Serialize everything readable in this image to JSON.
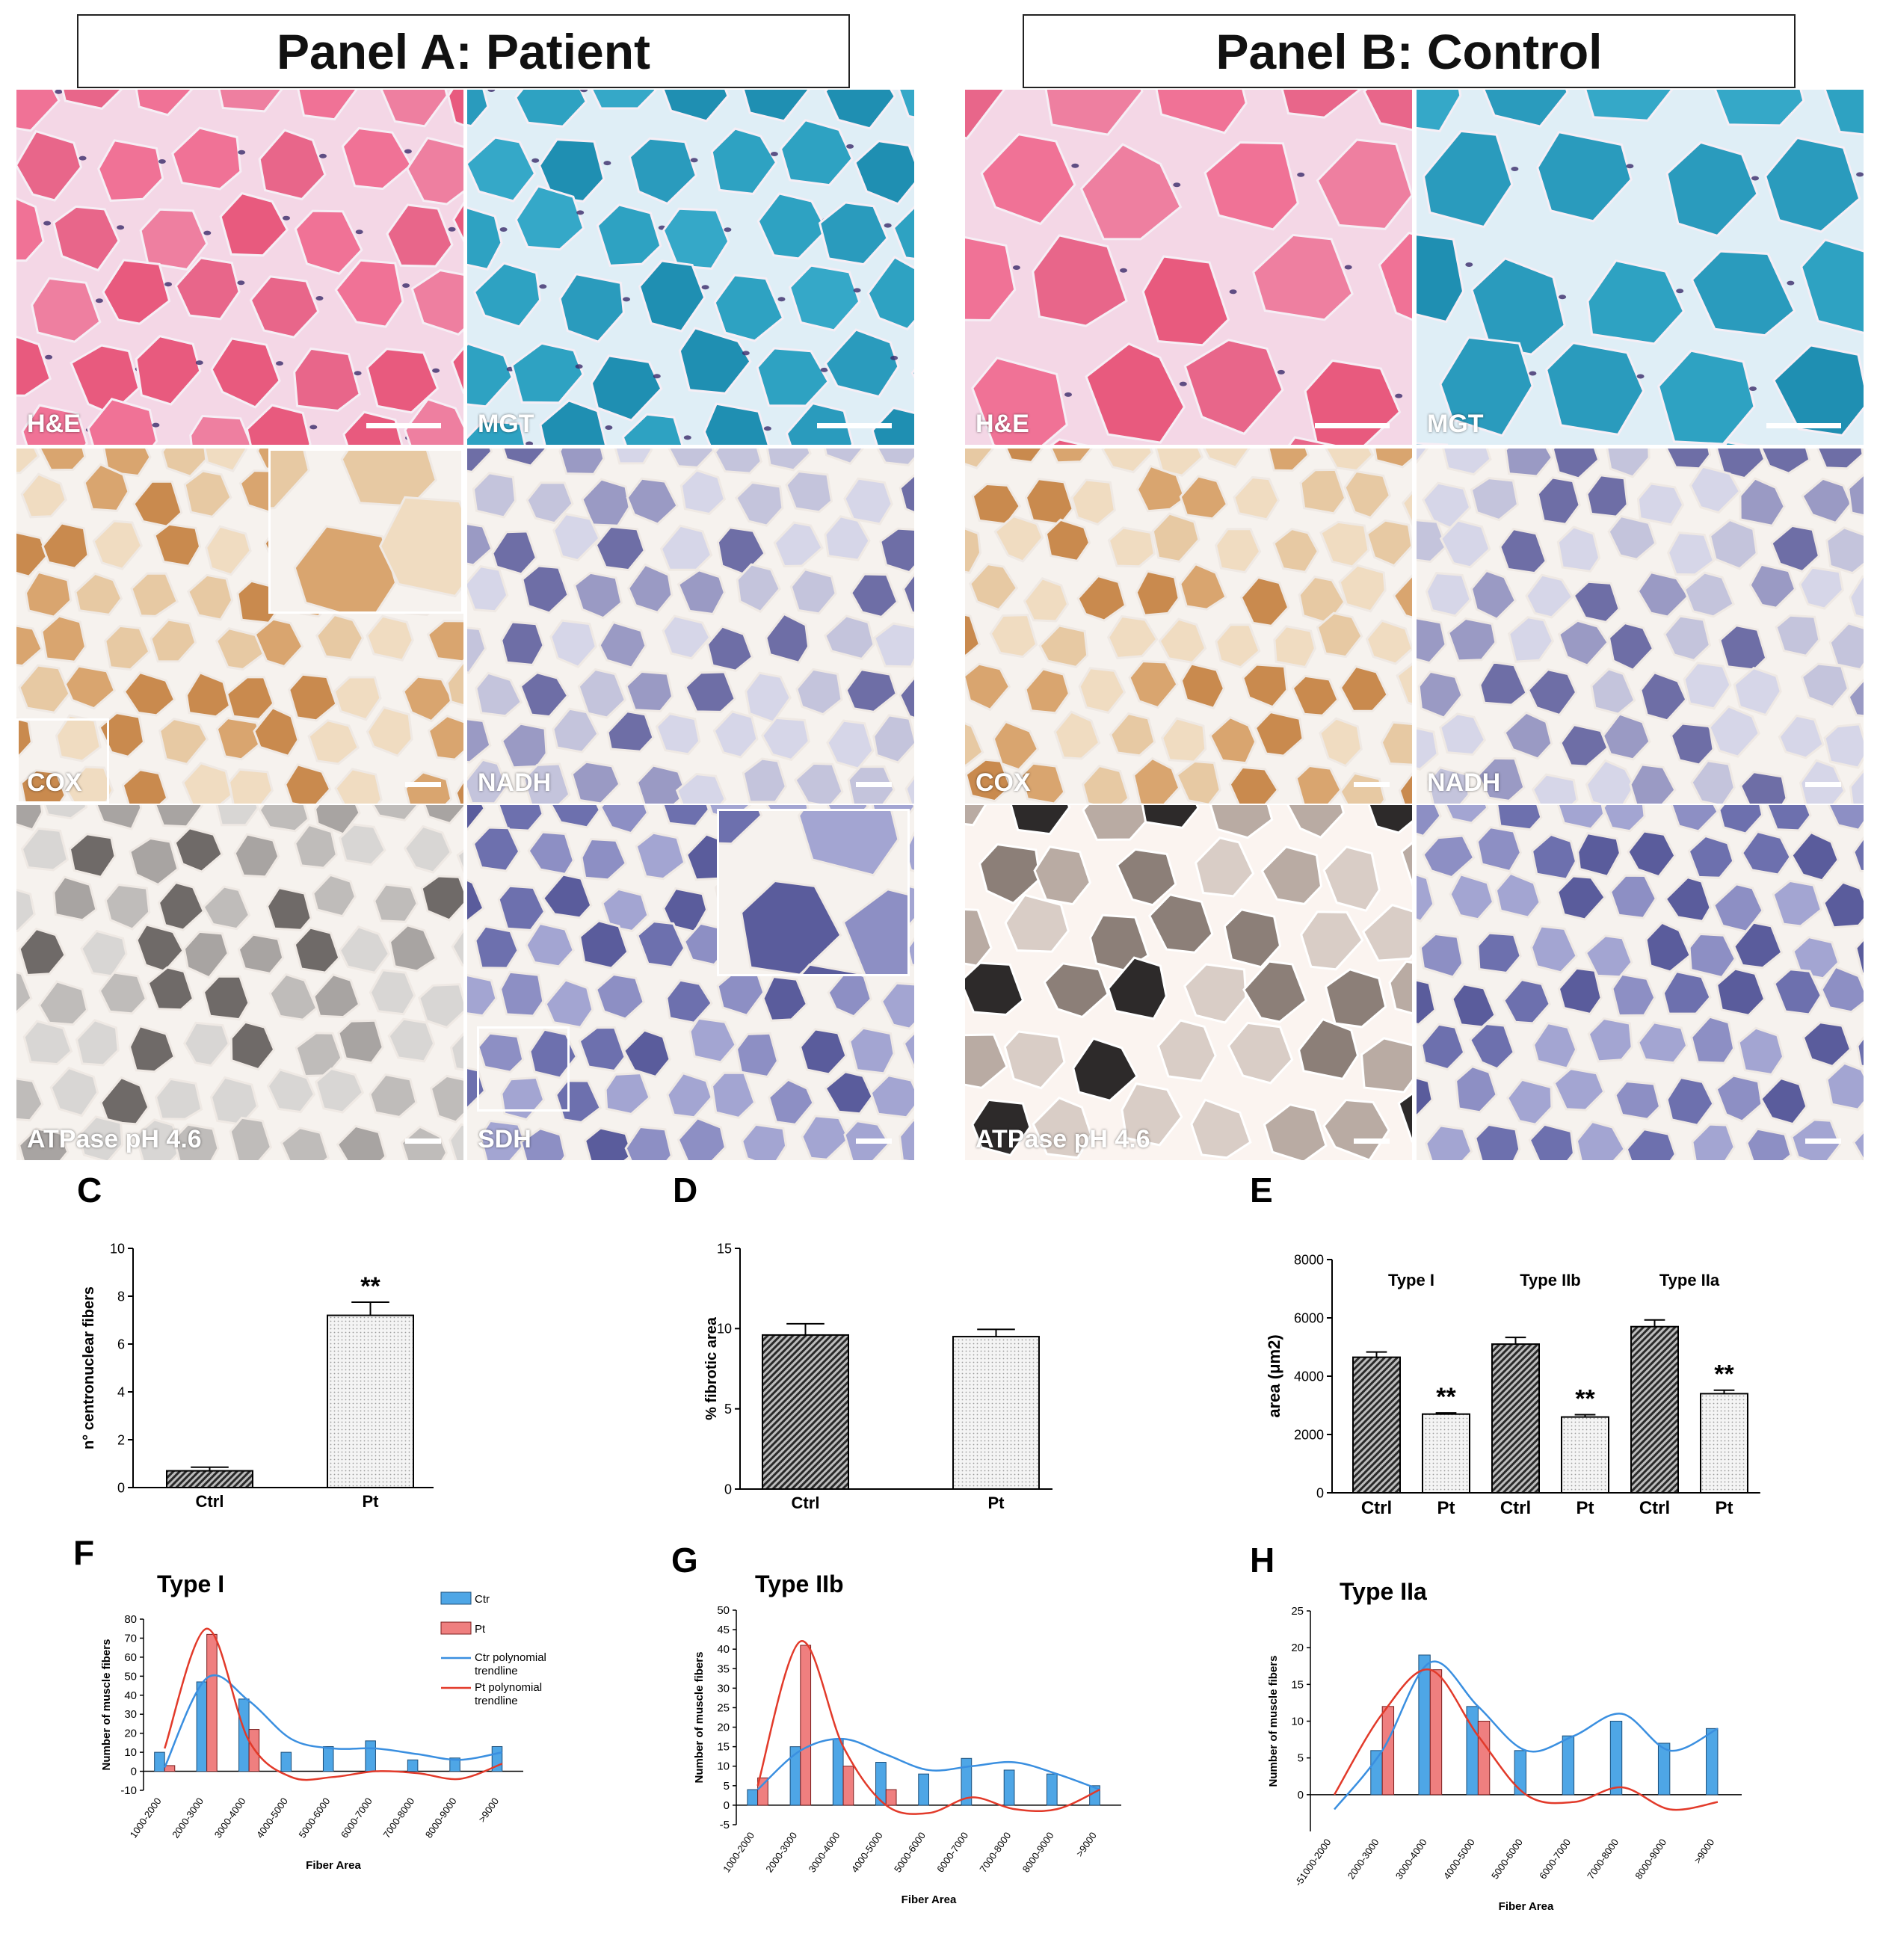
{
  "panel_titles": {
    "a": "Panel A: Patient",
    "b": "Panel B: Control"
  },
  "micrographs": [
    {
      "id": "a-he",
      "label": "H&E",
      "theme": "he",
      "scalebar": true
    },
    {
      "id": "a-mgt",
      "label": "MGT",
      "theme": "mgt",
      "scalebar": true
    },
    {
      "id": "a-cox",
      "label": "COX",
      "theme": "cox",
      "scalebar": true
    },
    {
      "id": "a-nadh",
      "label": "NADH",
      "theme": "nadh",
      "scalebar": true
    },
    {
      "id": "a-atp",
      "label": "ATPase pH 4.6",
      "theme": "atp",
      "scalebar": true
    },
    {
      "id": "a-sdh",
      "label": "SDH",
      "theme": "sdh",
      "scalebar": true
    },
    {
      "id": "b-he",
      "label": "H&E",
      "theme": "he",
      "scalebar": true
    },
    {
      "id": "b-mgt",
      "label": "MGT",
      "theme": "mgt",
      "scalebar": true
    },
    {
      "id": "b-cox",
      "label": "COX",
      "theme": "cox",
      "scalebar": true
    },
    {
      "id": "b-nadh",
      "label": "NADH",
      "theme": "nadh",
      "scalebar": true
    },
    {
      "id": "b-atp",
      "label": "ATPase pH 4.6",
      "theme": "atp2",
      "scalebar": true
    },
    {
      "id": "b-sdh",
      "label": "",
      "theme": "sdh",
      "scalebar": true
    }
  ],
  "stain_colors": {
    "he": [
      "#e85a7e",
      "#f07296",
      "#e8668a",
      "#ee7fa0"
    ],
    "mgt": [
      "#2a9bbd",
      "#35a8c8",
      "#1f8fb2",
      "#2ea2c2"
    ],
    "cox": [
      "#e7c9a3",
      "#d9a56f",
      "#c98a4e",
      "#f0dcc1"
    ],
    "nadh": [
      "#c4c4dc",
      "#9a9ac4",
      "#6e6ea6",
      "#d6d6e8"
    ],
    "atp": [
      "#d8d6d4",
      "#a8a4a2",
      "#6f6a68",
      "#bfbcba"
    ],
    "atp2": [
      "#2d2a2a",
      "#b9aba3",
      "#d9cdc6",
      "#8c7f78"
    ],
    "sdh": [
      "#8d8fc4",
      "#6d70ae",
      "#a3a5d2",
      "#5a5c9c"
    ]
  },
  "chart_data": [
    {
      "panel": "C",
      "type": "bar",
      "title": "",
      "categories": [
        "Ctrl",
        "Pt"
      ],
      "values": [
        0.7,
        7.2
      ],
      "errors": [
        0.15,
        0.55
      ],
      "ylabel": "n° centronuclear fibers",
      "ylim": [
        0,
        10
      ],
      "yticks": [
        0,
        2,
        4,
        6,
        8,
        10
      ],
      "annotations": [
        {
          "category": "Pt",
          "text": "**"
        }
      ]
    },
    {
      "panel": "D",
      "type": "bar",
      "title": "",
      "categories": [
        "Ctrl",
        "Pt"
      ],
      "values": [
        9.6,
        9.5
      ],
      "errors": [
        0.7,
        0.45
      ],
      "ylabel": "% fibrotic area",
      "ylim": [
        0,
        15
      ],
      "yticks": [
        0,
        5,
        10,
        15
      ]
    },
    {
      "panel": "E",
      "type": "bar",
      "title": "",
      "groups": [
        "Type I",
        "Type IIb",
        "Type IIa"
      ],
      "categories": [
        "Ctrl",
        "Pt",
        "Ctrl",
        "Pt",
        "Ctrl",
        "Pt"
      ],
      "values": [
        4650,
        2700,
        5100,
        2600,
        5700,
        3400
      ],
      "errors": [
        180,
        40,
        230,
        80,
        230,
        120
      ],
      "ylabel": "area (μm2)",
      "ylim": [
        0,
        8000
      ],
      "yticks": [
        0,
        2000,
        4000,
        6000,
        8000
      ],
      "annotations": [
        {
          "index": 1,
          "text": "**"
        },
        {
          "index": 3,
          "text": "**"
        },
        {
          "index": 5,
          "text": "**"
        }
      ]
    },
    {
      "panel": "F",
      "type": "bar",
      "title": "Type I",
      "categories": [
        "1000-2000",
        "2000-3000",
        "3000-4000",
        "4000-5000",
        "5000-6000",
        "6000-7000",
        "7000-8000",
        "8000-9000",
        ">9000"
      ],
      "series": [
        {
          "name": "Ctr",
          "values": [
            10,
            47,
            38,
            10,
            13,
            16,
            6,
            7,
            13
          ]
        },
        {
          "name": "Pt",
          "values": [
            3,
            72,
            22,
            0,
            0,
            0,
            0,
            0,
            0
          ]
        }
      ],
      "trendlines": [
        {
          "name": "Ctr polynomial trendline",
          "values": [
            2,
            49,
            37,
            17,
            12,
            12,
            9,
            6,
            10
          ]
        },
        {
          "name": "Pt polynomial trendline",
          "values": [
            12,
            75,
            16,
            -3,
            -3,
            0,
            -1,
            -4,
            4
          ]
        }
      ],
      "xlabel": "Fiber Area",
      "ylabel": "Number of muscle fibers",
      "ylim": [
        -10,
        80
      ],
      "yticks": [
        -10,
        0,
        10,
        20,
        30,
        40,
        50,
        60,
        70,
        80
      ],
      "legend": [
        "Ctr",
        "Pt",
        "Ctr polynomial trendline",
        "Pt polynomial trendline"
      ]
    },
    {
      "panel": "G",
      "type": "bar",
      "title": "Type IIb",
      "categories": [
        "1000-2000",
        "2000-3000",
        "3000-4000",
        "4000-5000",
        "5000-6000",
        "6000-7000",
        "7000-8000",
        "8000-9000",
        ">9000"
      ],
      "series": [
        {
          "name": "Ctr",
          "values": [
            4,
            15,
            17,
            11,
            8,
            12,
            9,
            8,
            5
          ]
        },
        {
          "name": "Pt",
          "values": [
            7,
            41,
            10,
            4,
            0,
            0,
            0,
            0,
            0
          ]
        }
      ],
      "trendlines": [
        {
          "name": "Ctr polynomial trendline",
          "values": [
            4,
            14,
            17,
            13,
            9,
            10,
            11,
            8,
            4
          ]
        },
        {
          "name": "Pt polynomial trendline",
          "values": [
            5,
            42,
            15,
            0,
            -2,
            2,
            -1,
            -1,
            4
          ]
        }
      ],
      "xlabel": "Fiber Area",
      "ylabel": "Number of muscle fibers",
      "ylim": [
        -5,
        50
      ],
      "yticks": [
        -5,
        0,
        5,
        10,
        15,
        20,
        25,
        30,
        35,
        40,
        45,
        50
      ]
    },
    {
      "panel": "H",
      "type": "bar",
      "title": "Type IIa",
      "categories": [
        "-51000-2000",
        "2000-3000",
        "3000-4000",
        "4000-5000",
        "5000-6000",
        "6000-7000",
        "7000-8000",
        "8000-9000",
        ">9000"
      ],
      "series": [
        {
          "name": "Ctr",
          "values": [
            0,
            6,
            19,
            12,
            6,
            8,
            10,
            7,
            9
          ]
        },
        {
          "name": "Pt",
          "values": [
            0,
            12,
            17,
            10,
            0,
            0,
            0,
            0,
            0
          ]
        }
      ],
      "trendlines": [
        {
          "name": "Ctr polynomial trendline",
          "values": [
            -2,
            6,
            18,
            12,
            6,
            8,
            11,
            6,
            9
          ]
        },
        {
          "name": "Pt polynomial trendline",
          "values": [
            0,
            11,
            17,
            8,
            0,
            -1,
            1,
            -2,
            -1
          ]
        }
      ],
      "xlabel": "Fiber Area",
      "ylabel": "Number of muscle fibers",
      "ylim": [
        -5,
        25
      ],
      "yticks": [
        0,
        5,
        10,
        15,
        20,
        25
      ]
    }
  ],
  "series_colors": {
    "Ctr": "#4ea6e6",
    "Pt": "#ef7f7f",
    "Ctr_trend": "#3a8fe0",
    "Pt_trend": "#e23a2a"
  }
}
